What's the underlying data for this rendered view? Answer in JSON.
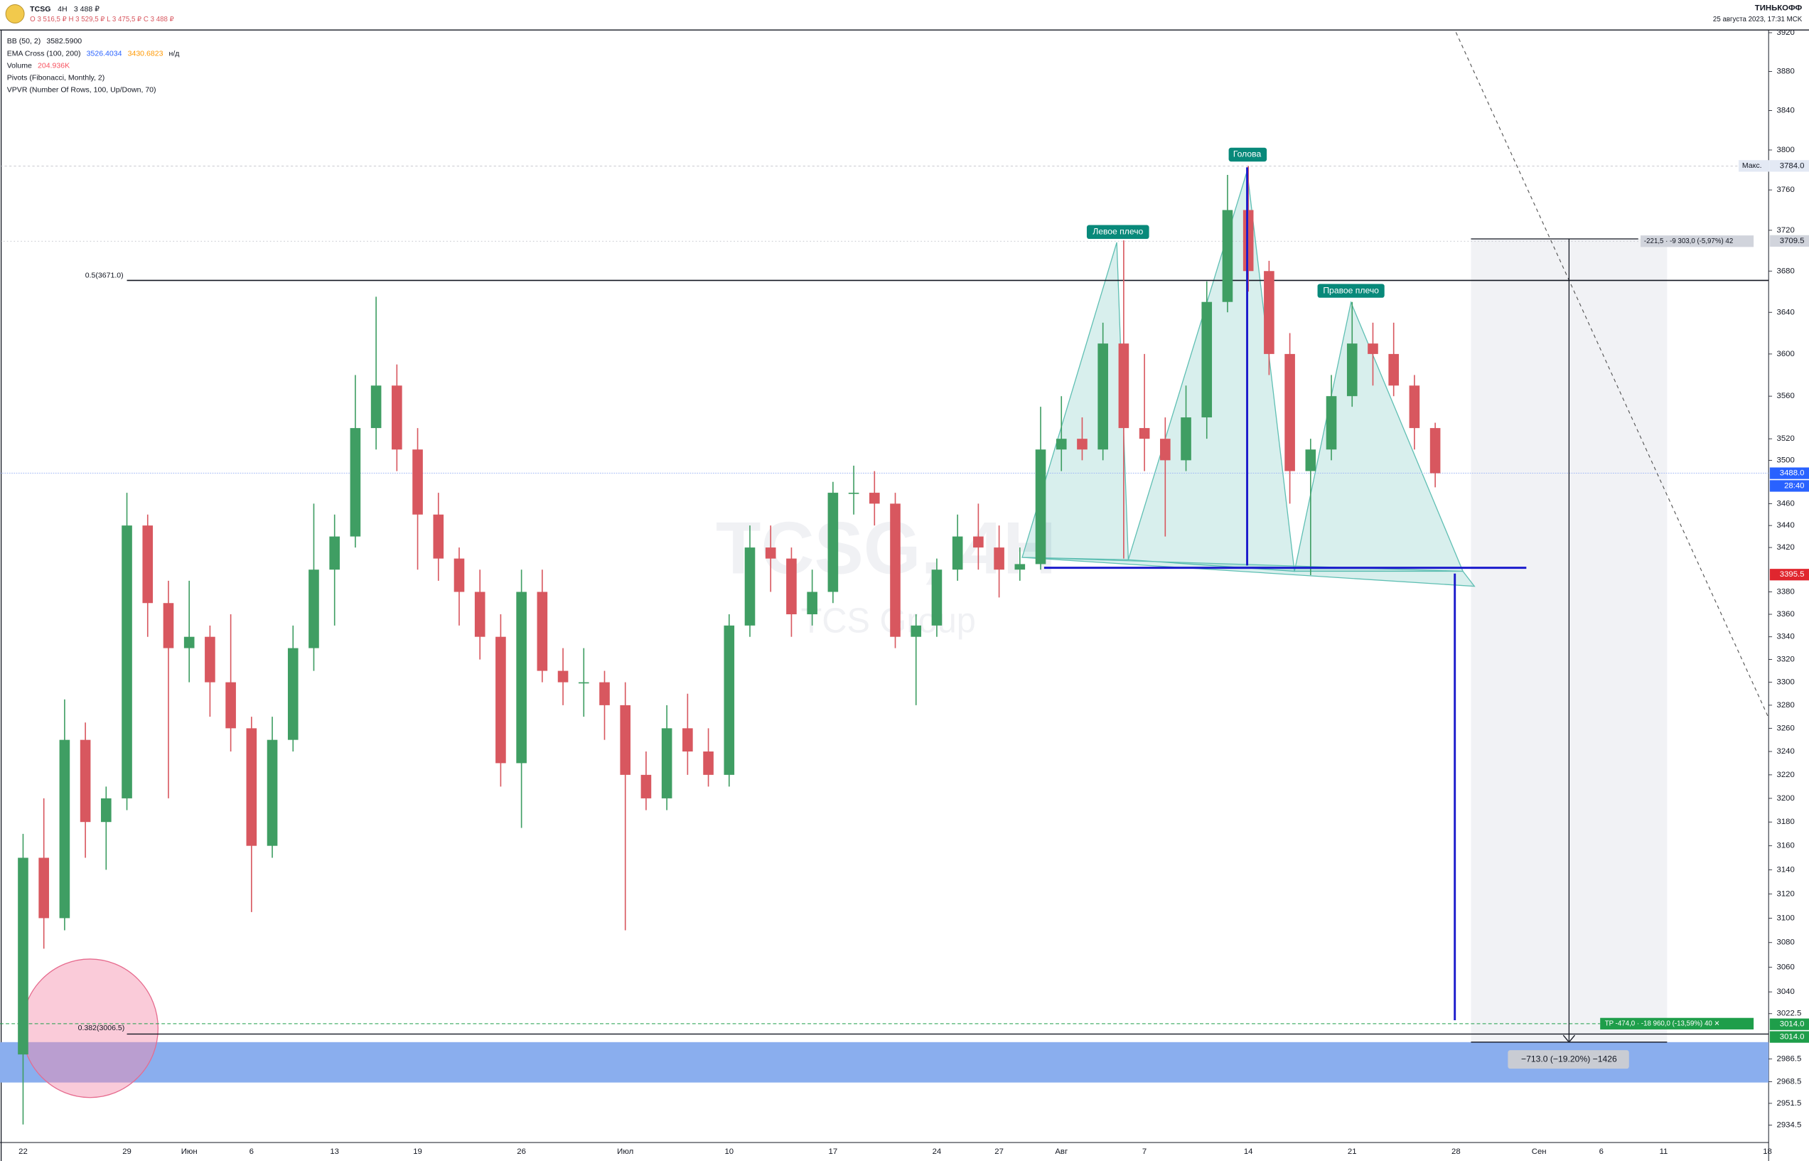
{
  "header": {
    "ticker": "TCSG",
    "interval": "4H",
    "price": "3 488 ₽",
    "ohlc": "O 3 516,5 ₽  H 3 529,5 ₽  L 3 475,5 ₽  C 3 488 ₽"
  },
  "brand": "ТИНЬКОФФ",
  "timestamp": "25 августа 2023, 17:31 MCK",
  "indicators": [
    {
      "name": "BB (50, 2)",
      "values": [
        {
          "text": "3582.5900",
          "color": "#131722"
        }
      ]
    },
    {
      "name": "EMA Cross (100, 200)",
      "values": [
        {
          "text": "3526.4034",
          "color": "#2962ff"
        },
        {
          "text": "3430.6823",
          "color": "#ff9800"
        },
        {
          "text": "н/д",
          "color": "#131722"
        }
      ]
    },
    {
      "name": "Volume",
      "values": [
        {
          "text": "204.936K",
          "color": "#f7525f"
        }
      ]
    },
    {
      "name": "Pivots (Fibonacci, Monthly, 2)",
      "values": []
    },
    {
      "name": "VPVR (Number Of Rows, 100, Up/Down, 70)",
      "values": []
    }
  ],
  "watermark": {
    "symbol": "TCSG, 4H",
    "company": "TCS Group"
  },
  "chart_data": {
    "type": "candlestick",
    "categories": [
      "22",
      null,
      null,
      null,
      null,
      "29",
      null,
      null,
      "Июн",
      null,
      null,
      "6",
      null,
      null,
      null,
      "13",
      null,
      null,
      null,
      "19",
      null,
      null,
      null,
      null,
      "26",
      null,
      null,
      null,
      null,
      "Июл",
      null,
      null,
      null,
      null,
      "10",
      null,
      null,
      null,
      null,
      "17",
      null,
      null,
      null,
      null,
      "24",
      null,
      null,
      "27",
      null,
      null,
      "Авг",
      null,
      null,
      null,
      "7",
      null,
      null,
      null,
      null,
      "14",
      null,
      null,
      null,
      null,
      "21",
      null,
      null,
      null,
      null,
      "28",
      null,
      null,
      null,
      "Сен",
      null,
      null,
      "6",
      null,
      null,
      "11",
      null,
      null,
      null,
      null,
      "18"
    ],
    "open": [
      2990,
      3150,
      3100,
      3250,
      3180,
      3200,
      3440,
      3370,
      3330,
      3340,
      3300,
      3260,
      3160,
      3250,
      3330,
      3400,
      3430,
      3530,
      3570,
      3510,
      3450,
      3410,
      3380,
      3340,
      3230,
      3380,
      3310,
      3300,
      3300,
      3280,
      3220,
      3200,
      3260,
      3240,
      3220,
      3350,
      3420,
      3410,
      3360,
      3380,
      3470,
      3470,
      3460,
      3340,
      3350,
      3400,
      3430,
      3420,
      3400,
      3405,
      3510,
      3520,
      3510,
      3610,
      3530,
      3520,
      3500,
      3540,
      3650,
      3740,
      3680,
      3600,
      3490,
      3510,
      3560,
      3610,
      3600,
      3570,
      3530,
      null,
      null,
      null,
      null,
      null,
      null,
      null,
      null,
      null,
      null,
      null,
      null,
      null,
      null,
      null,
      null
    ],
    "high": [
      3170,
      3200,
      3285,
      3265,
      3210,
      3470,
      3450,
      3390,
      3390,
      3350,
      3360,
      3270,
      3270,
      3350,
      3460,
      3450,
      3580,
      3655,
      3590,
      3530,
      3470,
      3420,
      3400,
      3360,
      3400,
      3400,
      3330,
      3330,
      3310,
      3300,
      3240,
      3280,
      3290,
      3260,
      3360,
      3440,
      3440,
      3420,
      3400,
      3480,
      3495,
      3490,
      3470,
      3360,
      3410,
      3450,
      3460,
      3440,
      3420,
      3550,
      3560,
      3540,
      3630,
      3710,
      3600,
      3540,
      3570,
      3670,
      3775,
      3784,
      3690,
      3620,
      3520,
      3580,
      3650,
      3630,
      3630,
      3580,
      3535,
      null,
      null,
      null,
      null,
      null,
      null,
      null,
      null,
      null,
      null,
      null,
      null,
      null,
      null,
      null,
      null
    ],
    "low": [
      2935,
      3075,
      3090,
      3150,
      3140,
      3190,
      3340,
      3200,
      3300,
      3270,
      3240,
      3105,
      3150,
      3240,
      3310,
      3350,
      3420,
      3510,
      3490,
      3400,
      3390,
      3350,
      3320,
      3210,
      3175,
      3300,
      3280,
      3270,
      3250,
      3090,
      3190,
      3190,
      3220,
      3210,
      3210,
      3340,
      3380,
      3340,
      3350,
      3370,
      3450,
      3440,
      3330,
      3280,
      3340,
      3390,
      3400,
      3375,
      3390,
      3400,
      3490,
      3500,
      3500,
      3410,
      3490,
      3430,
      3490,
      3520,
      3640,
      3660,
      3580,
      3460,
      3395,
      3500,
      3550,
      3570,
      3560,
      3510,
      3475,
      null,
      null,
      null,
      null,
      null,
      null,
      null,
      null,
      null,
      null,
      null,
      null,
      null,
      null,
      null,
      null
    ],
    "close": [
      3150,
      3100,
      3250,
      3180,
      3200,
      3440,
      3370,
      3330,
      3340,
      3300,
      3260,
      3160,
      3250,
      3330,
      3400,
      3430,
      3530,
      3570,
      3510,
      3450,
      3410,
      3380,
      3340,
      3230,
      3380,
      3310,
      3300,
      3300,
      3280,
      3220,
      3200,
      3260,
      3240,
      3220,
      3350,
      3420,
      3410,
      3360,
      3380,
      3470,
      3470,
      3460,
      3340,
      3350,
      3400,
      3430,
      3420,
      3400,
      3405,
      3510,
      3520,
      3510,
      3610,
      3530,
      3520,
      3500,
      3540,
      3650,
      3740,
      3680,
      3600,
      3490,
      3510,
      3560,
      3610,
      3600,
      3570,
      3530,
      3488,
      null,
      null,
      null,
      null,
      null,
      null,
      null,
      null,
      null,
      null,
      null,
      null,
      null,
      null,
      null,
      null
    ],
    "up_color": "#3f9e63",
    "down_color": "#d8575f",
    "ylim": [
      2921,
      3924
    ],
    "log_scale": true,
    "yticks": [
      3920,
      3880,
      3840,
      3800,
      3760,
      3720,
      3680,
      3640,
      3600,
      3560,
      3520,
      3500,
      3460,
      3440,
      3420,
      3380,
      3360,
      3340,
      3320,
      3300,
      3280,
      3260,
      3240,
      3220,
      3200,
      3180,
      3160,
      3140,
      3120,
      3100,
      3080,
      3060,
      3040,
      3022.5,
      2986.5,
      2968.5,
      2951.5,
      2934.5
    ],
    "price_markers": [
      {
        "prefix": "Макс.",
        "price": {
          "value": 3784,
          "label": "3784.0"
        },
        "color": "#e3e9f4",
        "text_color": "#131722"
      },
      {
        "price": 3709.5,
        "color": "#d1d4dc",
        "text_color": "#131722"
      },
      {
        "price": {
          "value": 3488,
          "label": "3488.0"
        },
        "timer": "28:40",
        "color": "#2962ff",
        "text_color": "#ffffff"
      },
      {
        "price": 3395.5,
        "color": "#e0262e",
        "text_color": "#ffffff"
      },
      {
        "price": {
          "value": 3014,
          "label": "3014.0"
        },
        "color": "#1e9e4a",
        "text_color": "#ffffff"
      },
      {
        "price": {
          "value": 3014,
          "label": "3014.0"
        },
        "color": "#1e9e4a",
        "text_color": "#ffffff"
      }
    ],
    "annotations": {
      "head": "Голова",
      "left_shoulder": "Левое плечо",
      "right_shoulder": "Правое плечо",
      "fib_050": "0.5(3671.0)",
      "fib_0382": "0.382(3006.5)",
      "short_position": "-221,5 · -9 303,0 (-5,97%)  42",
      "take_profit": "TP -474,0 · -18 960,0 (-13,59%)  40  ✕",
      "measure": "−713.0 (−19.20%) −1426"
    }
  }
}
